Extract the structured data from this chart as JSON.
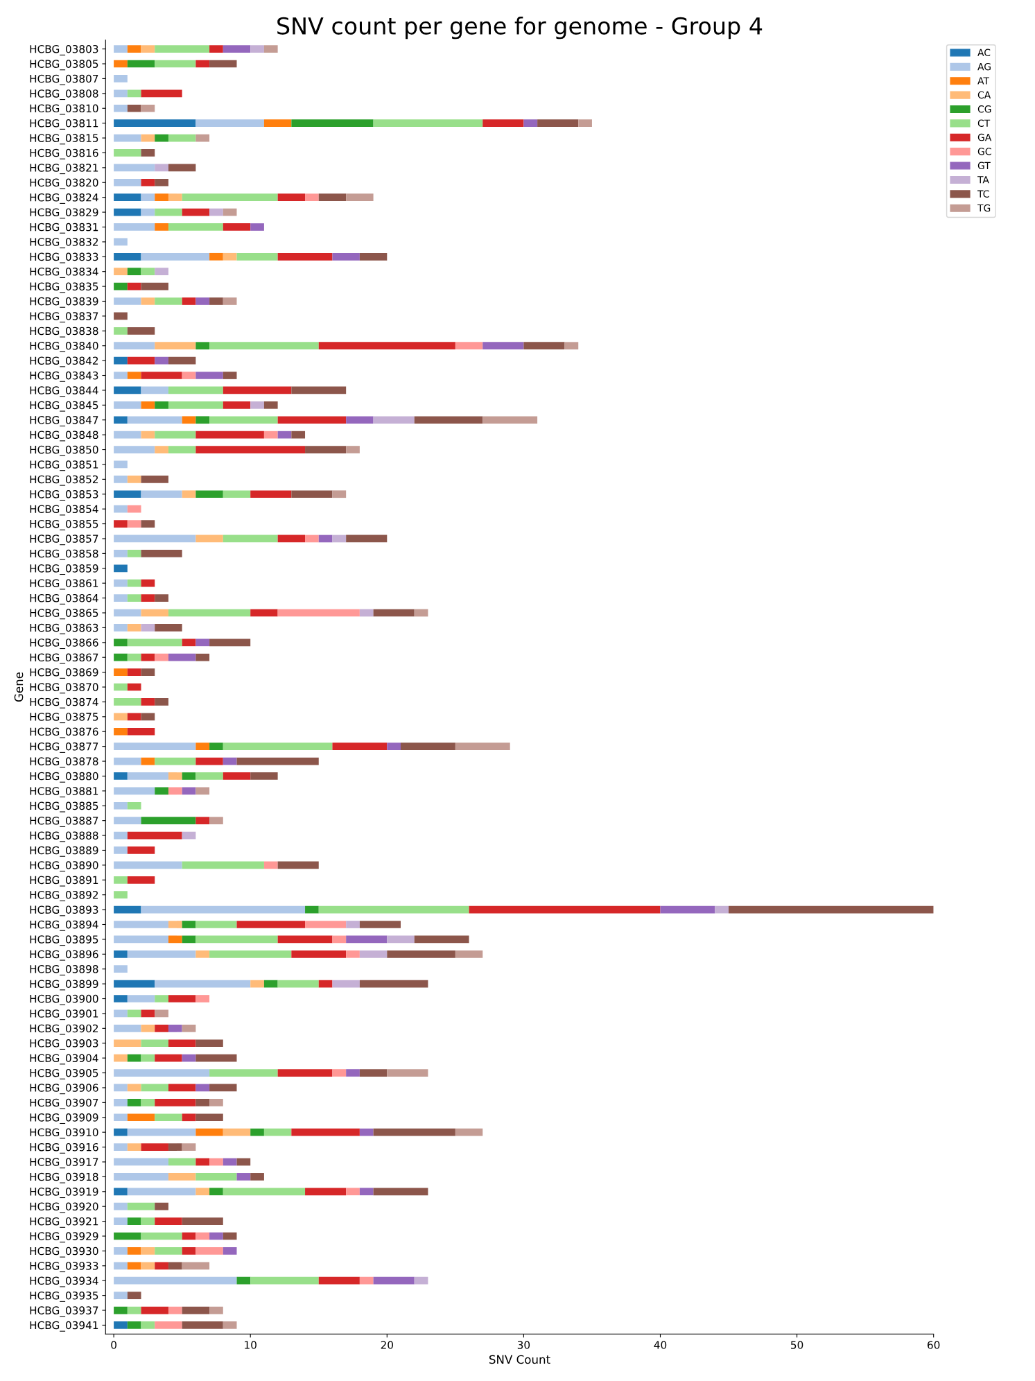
{
  "chart_data": {
    "type": "bar",
    "orientation": "horizontal",
    "stacked": true,
    "title": "SNV count per gene for genome - Group 4",
    "xlabel": "SNV Count",
    "ylabel": "Gene",
    "categories": [
      "HCBG_03803",
      "HCBG_03805",
      "HCBG_03807",
      "HCBG_03808",
      "HCBG_03810",
      "HCBG_03811",
      "HCBG_03815",
      "HCBG_03816",
      "HCBG_03821",
      "HCBG_03820",
      "HCBG_03824",
      "HCBG_03829",
      "HCBG_03831",
      "HCBG_03832",
      "HCBG_03833",
      "HCBG_03834",
      "HCBG_03835",
      "HCBG_03839",
      "HCBG_03837",
      "HCBG_03838",
      "HCBG_03840",
      "HCBG_03842",
      "HCBG_03843",
      "HCBG_03844",
      "HCBG_03845",
      "HCBG_03847",
      "HCBG_03848",
      "HCBG_03850",
      "HCBG_03851",
      "HCBG_03852",
      "HCBG_03853",
      "HCBG_03854",
      "HCBG_03855",
      "HCBG_03857",
      "HCBG_03858",
      "HCBG_03859",
      "HCBG_03861",
      "HCBG_03864",
      "HCBG_03865",
      "HCBG_03863",
      "HCBG_03866",
      "HCBG_03867",
      "HCBG_03869",
      "HCBG_03870",
      "HCBG_03874",
      "HCBG_03875",
      "HCBG_03876",
      "HCBG_03877",
      "HCBG_03878",
      "HCBG_03880",
      "HCBG_03881",
      "HCBG_03885",
      "HCBG_03887",
      "HCBG_03888",
      "HCBG_03889",
      "HCBG_03890",
      "HCBG_03891",
      "HCBG_03892",
      "HCBG_03893",
      "HCBG_03894",
      "HCBG_03895",
      "HCBG_03896",
      "HCBG_03898",
      "HCBG_03899",
      "HCBG_03900",
      "HCBG_03901",
      "HCBG_03902",
      "HCBG_03903",
      "HCBG_03904",
      "HCBG_03905",
      "HCBG_03906",
      "HCBG_03907",
      "HCBG_03909",
      "HCBG_03910",
      "HCBG_03916",
      "HCBG_03917",
      "HCBG_03918",
      "HCBG_03919",
      "HCBG_03920",
      "HCBG_03921",
      "HCBG_03929",
      "HCBG_03930",
      "HCBG_03933",
      "HCBG_03934",
      "HCBG_03935",
      "HCBG_03937",
      "HCBG_03941"
    ],
    "xlim": [
      -0.6,
      60
    ],
    "xticks": [
      0,
      10,
      20,
      30,
      40,
      50,
      60
    ],
    "grid": false,
    "legend": "top right",
    "series": [
      {
        "name": "AC",
        "color": "#1f77b4",
        "values": [
          0,
          0,
          0,
          0,
          0,
          6,
          0,
          0,
          0,
          0,
          2,
          2,
          0,
          0,
          2,
          0,
          0,
          0,
          0,
          0,
          0,
          1,
          0,
          2,
          0,
          1,
          0,
          0,
          0,
          0,
          2,
          0,
          0,
          0,
          0,
          1,
          0,
          0,
          0,
          0,
          0,
          0,
          0,
          0,
          0,
          0,
          0,
          0,
          0,
          1,
          0,
          0,
          0,
          0,
          0,
          0,
          0,
          0,
          2,
          0,
          0,
          1,
          0,
          3,
          1,
          0,
          0,
          0,
          0,
          0,
          0,
          0,
          0,
          1,
          0,
          0,
          0,
          1,
          0,
          0,
          0,
          0,
          0,
          0,
          0,
          0,
          1
        ]
      },
      {
        "name": "AG",
        "color": "#aec7e8",
        "values": [
          1,
          0,
          1,
          1,
          1,
          5,
          2,
          0,
          3,
          2,
          1,
          1,
          3,
          1,
          5,
          0,
          0,
          2,
          0,
          0,
          3,
          0,
          1,
          2,
          2,
          4,
          2,
          3,
          1,
          1,
          3,
          1,
          0,
          6,
          1,
          0,
          1,
          1,
          2,
          1,
          0,
          0,
          0,
          0,
          0,
          0,
          0,
          6,
          2,
          3,
          3,
          1,
          2,
          1,
          1,
          5,
          0,
          0,
          12,
          4,
          4,
          5,
          1,
          7,
          2,
          1,
          2,
          0,
          0,
          7,
          1,
          1,
          1,
          5,
          1,
          4,
          4,
          5,
          1,
          1,
          0,
          1,
          1,
          9,
          1,
          0,
          0
        ]
      },
      {
        "name": "AT",
        "color": "#ff7f0e",
        "values": [
          1,
          1,
          0,
          0,
          0,
          2,
          0,
          0,
          0,
          0,
          1,
          0,
          1,
          0,
          1,
          0,
          0,
          0,
          0,
          0,
          0,
          0,
          1,
          0,
          1,
          1,
          0,
          0,
          0,
          0,
          0,
          0,
          0,
          0,
          0,
          0,
          0,
          0,
          0,
          0,
          0,
          0,
          1,
          0,
          0,
          0,
          1,
          1,
          1,
          0,
          0,
          0,
          0,
          0,
          0,
          0,
          0,
          0,
          0,
          0,
          1,
          0,
          0,
          0,
          0,
          0,
          0,
          0,
          0,
          0,
          0,
          0,
          2,
          2,
          0,
          0,
          0,
          0,
          0,
          0,
          0,
          1,
          1,
          0,
          0,
          0,
          0
        ]
      },
      {
        "name": "CA",
        "color": "#ffbb78",
        "values": [
          1,
          0,
          0,
          0,
          0,
          0,
          1,
          0,
          0,
          0,
          1,
          0,
          0,
          0,
          1,
          1,
          0,
          1,
          0,
          0,
          3,
          0,
          0,
          0,
          0,
          0,
          1,
          1,
          0,
          1,
          1,
          0,
          0,
          2,
          0,
          0,
          0,
          0,
          2,
          1,
          0,
          0,
          0,
          0,
          0,
          1,
          0,
          0,
          0,
          1,
          0,
          0,
          0,
          0,
          0,
          0,
          0,
          0,
          0,
          1,
          0,
          1,
          0,
          1,
          0,
          0,
          1,
          2,
          1,
          0,
          1,
          0,
          0,
          2,
          1,
          0,
          2,
          1,
          0,
          0,
          0,
          1,
          1,
          0,
          0,
          0,
          0
        ]
      },
      {
        "name": "CG",
        "color": "#2ca02c",
        "values": [
          0,
          2,
          0,
          0,
          0,
          6,
          1,
          0,
          0,
          0,
          0,
          0,
          0,
          0,
          0,
          1,
          1,
          0,
          0,
          0,
          1,
          0,
          0,
          0,
          1,
          1,
          0,
          0,
          0,
          0,
          2,
          0,
          0,
          0,
          0,
          0,
          0,
          0,
          0,
          0,
          1,
          1,
          0,
          0,
          0,
          0,
          0,
          1,
          0,
          1,
          1,
          0,
          4,
          0,
          0,
          0,
          0,
          0,
          1,
          1,
          1,
          0,
          0,
          1,
          0,
          0,
          0,
          0,
          1,
          0,
          0,
          1,
          0,
          1,
          0,
          0,
          0,
          1,
          0,
          1,
          2,
          0,
          0,
          1,
          0,
          1,
          1
        ]
      },
      {
        "name": "CT",
        "color": "#98df8a",
        "values": [
          4,
          3,
          0,
          1,
          0,
          8,
          2,
          2,
          0,
          0,
          7,
          2,
          4,
          0,
          3,
          1,
          0,
          2,
          0,
          1,
          8,
          0,
          0,
          4,
          4,
          5,
          3,
          2,
          0,
          0,
          2,
          0,
          0,
          4,
          1,
          0,
          1,
          1,
          6,
          0,
          4,
          1,
          0,
          1,
          2,
          0,
          0,
          8,
          3,
          2,
          0,
          1,
          0,
          0,
          0,
          6,
          1,
          1,
          11,
          3,
          6,
          6,
          0,
          3,
          1,
          1,
          0,
          2,
          1,
          5,
          2,
          1,
          2,
          2,
          0,
          2,
          3,
          6,
          2,
          1,
          3,
          2,
          0,
          5,
          0,
          1,
          1
        ]
      },
      {
        "name": "GA",
        "color": "#d62728",
        "values": [
          1,
          1,
          0,
          3,
          0,
          3,
          0,
          0,
          0,
          1,
          2,
          2,
          2,
          0,
          4,
          0,
          1,
          1,
          0,
          0,
          10,
          2,
          3,
          5,
          2,
          5,
          5,
          8,
          0,
          0,
          3,
          0,
          1,
          2,
          0,
          0,
          1,
          1,
          2,
          0,
          1,
          1,
          1,
          1,
          1,
          1,
          2,
          4,
          2,
          2,
          0,
          0,
          1,
          4,
          2,
          0,
          2,
          0,
          14,
          5,
          4,
          4,
          0,
          1,
          2,
          1,
          1,
          2,
          2,
          4,
          2,
          3,
          1,
          5,
          2,
          1,
          0,
          3,
          0,
          2,
          1,
          1,
          1,
          3,
          0,
          2,
          0
        ]
      },
      {
        "name": "GC",
        "color": "#ff9896",
        "values": [
          0,
          0,
          0,
          0,
          0,
          0,
          0,
          0,
          0,
          0,
          1,
          0,
          0,
          0,
          0,
          0,
          0,
          0,
          0,
          0,
          2,
          0,
          1,
          0,
          0,
          0,
          1,
          0,
          0,
          0,
          0,
          1,
          1,
          1,
          0,
          0,
          0,
          0,
          6,
          0,
          0,
          1,
          0,
          0,
          0,
          0,
          0,
          0,
          0,
          0,
          1,
          0,
          0,
          0,
          0,
          1,
          0,
          0,
          0,
          3,
          1,
          1,
          0,
          0,
          1,
          0,
          0,
          0,
          0,
          1,
          0,
          0,
          0,
          0,
          0,
          1,
          0,
          1,
          0,
          0,
          1,
          2,
          0,
          1,
          0,
          1,
          2
        ]
      },
      {
        "name": "GT",
        "color": "#9467bd",
        "values": [
          2,
          0,
          0,
          0,
          0,
          1,
          0,
          0,
          0,
          0,
          0,
          0,
          1,
          0,
          2,
          0,
          0,
          1,
          0,
          0,
          3,
          1,
          2,
          0,
          0,
          2,
          1,
          0,
          0,
          0,
          0,
          0,
          0,
          1,
          0,
          0,
          0,
          0,
          0,
          0,
          1,
          2,
          0,
          0,
          0,
          0,
          0,
          1,
          1,
          0,
          1,
          0,
          0,
          0,
          0,
          0,
          0,
          0,
          4,
          0,
          3,
          0,
          0,
          0,
          0,
          0,
          1,
          0,
          1,
          1,
          1,
          0,
          0,
          1,
          0,
          1,
          1,
          1,
          0,
          0,
          1,
          1,
          0,
          3,
          0,
          0,
          0
        ]
      },
      {
        "name": "TA",
        "color": "#c5b0d5",
        "values": [
          1,
          0,
          0,
          0,
          0,
          0,
          0,
          0,
          1,
          0,
          0,
          1,
          0,
          0,
          0,
          1,
          0,
          0,
          0,
          0,
          0,
          0,
          0,
          0,
          1,
          3,
          0,
          0,
          0,
          0,
          0,
          0,
          0,
          1,
          0,
          0,
          0,
          0,
          1,
          1,
          0,
          0,
          0,
          0,
          0,
          0,
          0,
          0,
          0,
          0,
          0,
          0,
          0,
          1,
          0,
          0,
          0,
          0,
          1,
          1,
          2,
          2,
          0,
          2,
          0,
          0,
          0,
          0,
          0,
          0,
          0,
          0,
          0,
          0,
          0,
          0,
          0,
          0,
          0,
          0,
          0,
          0,
          0,
          1,
          0,
          0,
          0
        ]
      },
      {
        "name": "TC",
        "color": "#8c564b",
        "values": [
          0,
          2,
          0,
          0,
          1,
          3,
          0,
          1,
          2,
          1,
          2,
          0,
          0,
          0,
          2,
          0,
          2,
          1,
          1,
          2,
          3,
          2,
          1,
          4,
          1,
          5,
          1,
          3,
          0,
          2,
          3,
          0,
          1,
          3,
          3,
          0,
          0,
          1,
          3,
          2,
          3,
          1,
          1,
          0,
          1,
          1,
          0,
          4,
          6,
          2,
          0,
          0,
          0,
          0,
          0,
          3,
          0,
          0,
          15,
          3,
          4,
          5,
          0,
          5,
          0,
          0,
          0,
          2,
          3,
          2,
          2,
          1,
          2,
          6,
          1,
          1,
          1,
          4,
          1,
          3,
          1,
          0,
          1,
          0,
          1,
          2,
          3
        ]
      },
      {
        "name": "TG",
        "color": "#c49c94",
        "values": [
          1,
          0,
          0,
          0,
          1,
          1,
          1,
          0,
          0,
          0,
          2,
          1,
          0,
          0,
          0,
          0,
          0,
          1,
          0,
          0,
          1,
          0,
          0,
          0,
          0,
          4,
          0,
          1,
          0,
          0,
          1,
          0,
          0,
          0,
          0,
          0,
          0,
          0,
          1,
          0,
          0,
          0,
          0,
          0,
          0,
          0,
          0,
          4,
          0,
          0,
          1,
          0,
          1,
          0,
          0,
          0,
          0,
          0,
          0,
          0,
          0,
          2,
          0,
          0,
          0,
          1,
          1,
          0,
          0,
          3,
          0,
          1,
          0,
          2,
          1,
          0,
          0,
          0,
          0,
          0,
          0,
          0,
          2,
          0,
          0,
          1,
          1
        ]
      }
    ]
  }
}
